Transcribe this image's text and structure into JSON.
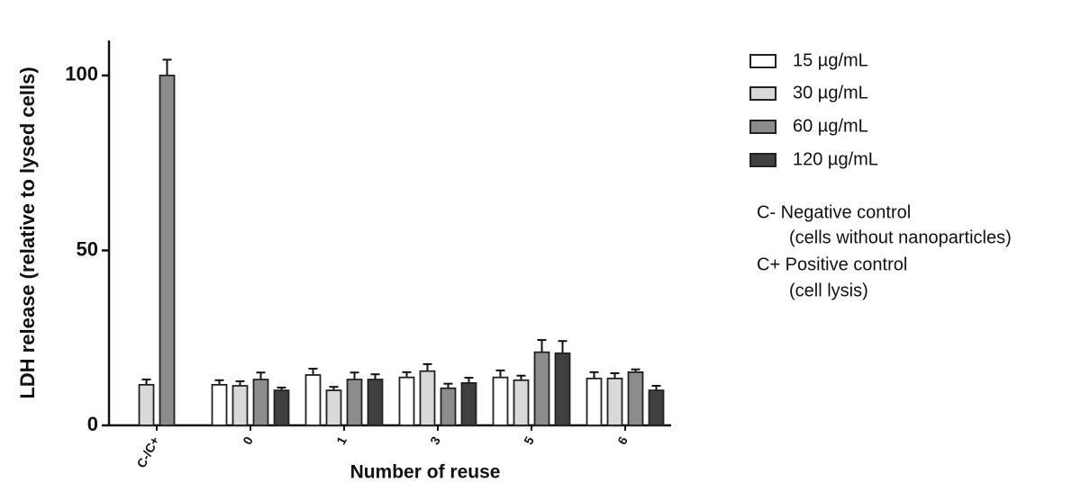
{
  "chart_data": {
    "type": "bar",
    "y_label": "LDH release (relative to lysed cells)",
    "x_label": "Number of reuse",
    "categories": [
      "C-/C+",
      "0",
      "1",
      "3",
      "5",
      "6"
    ],
    "series": [
      {
        "name": "15 µg/mL",
        "color": "#ffffff",
        "values": [
          null,
          11.6,
          14.4,
          13.7,
          13.7,
          13.4
        ],
        "errors": [
          null,
          1.3,
          1.8,
          1.5,
          2.0,
          1.8
        ]
      },
      {
        "name": "30 µg/mL",
        "color": "#d9d9d9",
        "values": [
          11.6,
          11.3,
          10,
          15.5,
          12.9,
          13.4
        ],
        "errors": [
          1.5,
          1.3,
          1.0,
          2.0,
          1.3,
          1.5
        ]
      },
      {
        "name": "60 µg/mL",
        "color": "#8c8c8c",
        "values": [
          100,
          13.1,
          13.1,
          10.6,
          20.9,
          15.2
        ],
        "errors": [
          4.5,
          2.0,
          2.0,
          1.3,
          3.5,
          0.8
        ]
      },
      {
        "name": "120 µg/mL",
        "color": "#404040",
        "values": [
          null,
          10,
          13.1,
          12.1,
          20.6,
          10
        ],
        "errors": [
          null,
          0.8,
          1.5,
          1.5,
          3.5,
          1.3
        ]
      }
    ],
    "ylim": [
      0,
      110
    ],
    "yticks": [
      0,
      50,
      100
    ],
    "annotations": [
      "C- Negative control",
      "(cells without nanoparticles)",
      "C+ Positive control",
      "(cell lysis)"
    ]
  }
}
